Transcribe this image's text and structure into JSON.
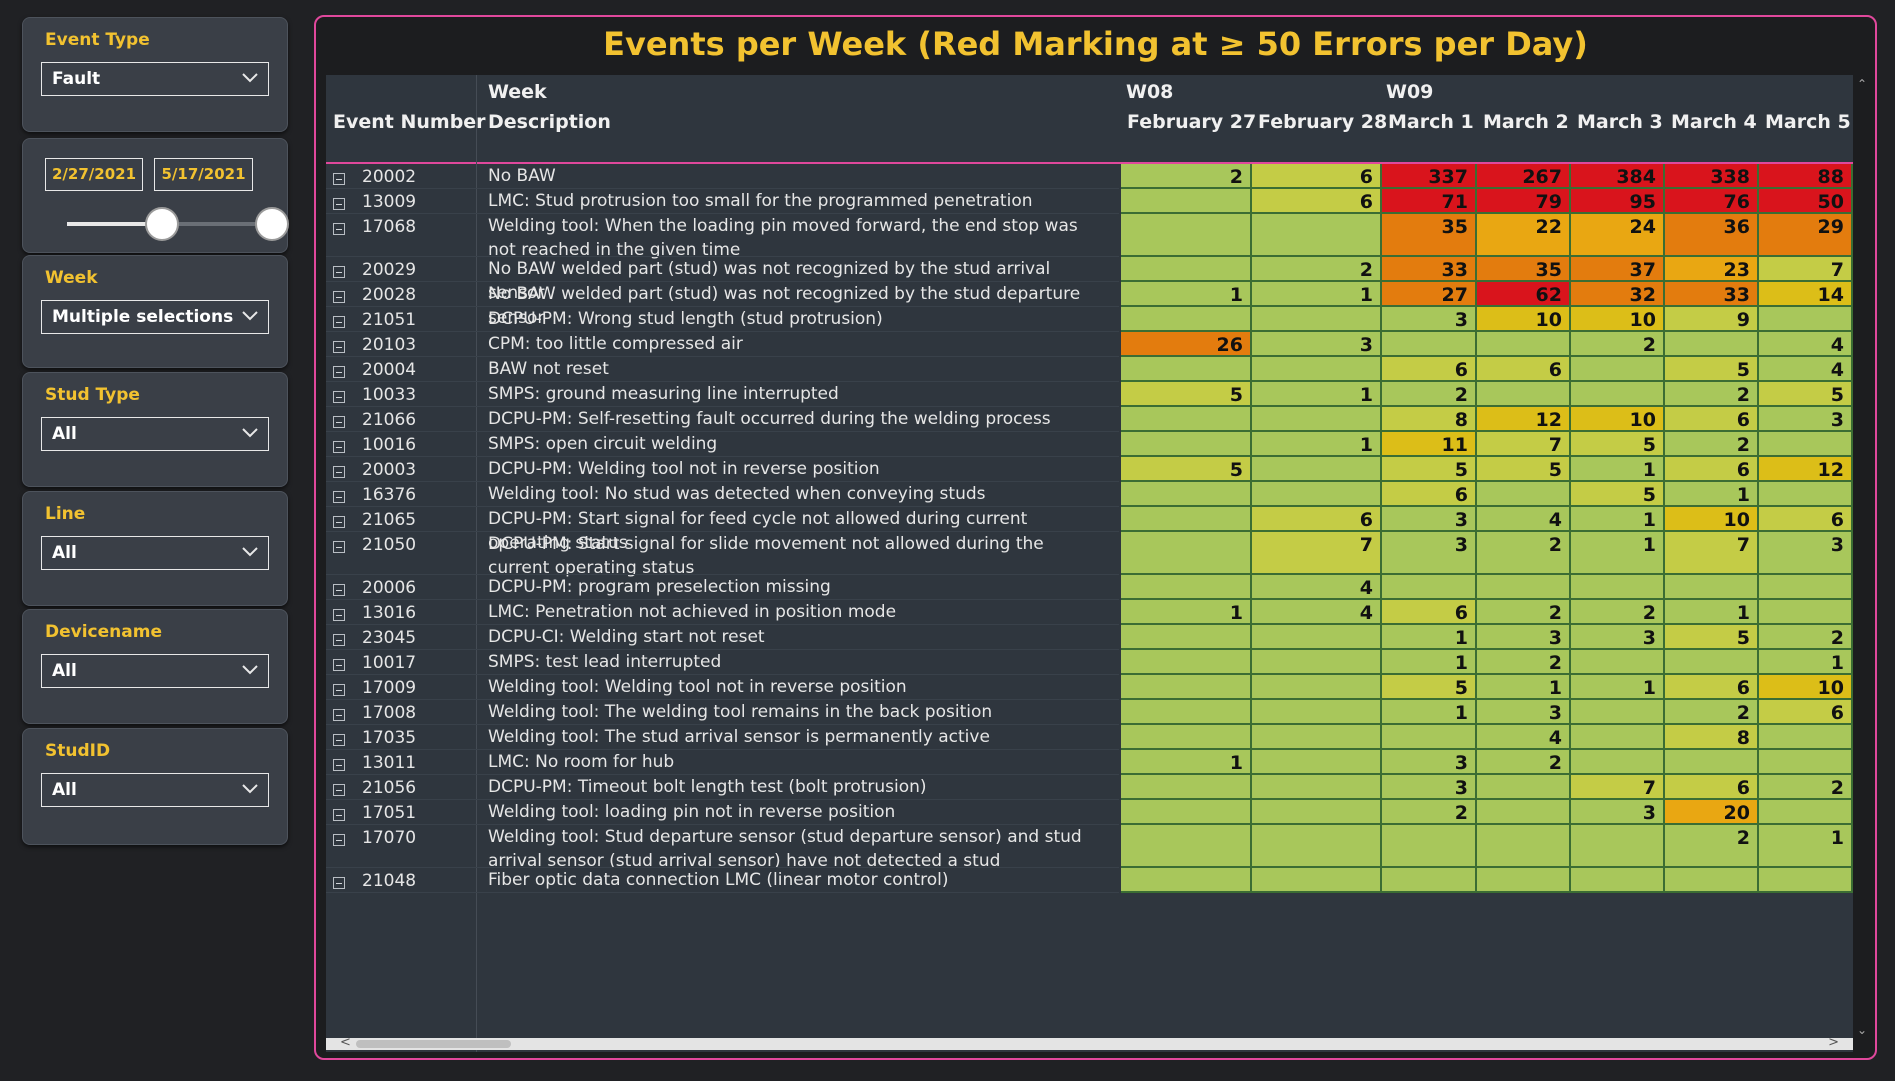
{
  "filters": {
    "event_type": {
      "label": "Event Type",
      "value": "Fault"
    },
    "date_range": {
      "start": "2/27/2021",
      "end": "5/17/2021"
    },
    "week": {
      "label": "Week",
      "value": "Multiple selections"
    },
    "stud_type": {
      "label": "Stud Type",
      "value": "All"
    },
    "line": {
      "label": "Line",
      "value": "All"
    },
    "devicename": {
      "label": "Devicename",
      "value": "All"
    },
    "studid": {
      "label": "StudID",
      "value": "All"
    }
  },
  "visual": {
    "title": "Events per Week (Red Marking at ≥ 50 Errors per Day)",
    "headers": {
      "event_number": "Event Number",
      "week": "Week",
      "description": "Description",
      "weeks": [
        {
          "label": "W08"
        },
        {
          "label": "W09"
        }
      ],
      "days": [
        "February 27",
        "February 28",
        "March 1",
        "March 2",
        "March 3",
        "March 4",
        "March 5"
      ]
    },
    "rows": [
      {
        "event": "20002",
        "desc": "No BAW",
        "values": [
          "2",
          "6",
          "337",
          "267",
          "384",
          "338",
          "88"
        ]
      },
      {
        "event": "13009",
        "desc": "LMC: Stud protrusion too small for the programmed penetration",
        "values": [
          "",
          "6",
          "71",
          "79",
          "95",
          "76",
          "50"
        ]
      },
      {
        "event": "17068",
        "desc": "Welding tool: When the loading pin moved forward, the end stop was not reached in the given time",
        "values": [
          "",
          "",
          "35",
          "22",
          "24",
          "36",
          "29"
        ]
      },
      {
        "event": "20029",
        "desc": "No BAW welded part (stud) was not recognized by the stud arrival sensor",
        "values": [
          "",
          "2",
          "33",
          "35",
          "37",
          "23",
          "7"
        ]
      },
      {
        "event": "20028",
        "desc": "No BAW welded part (stud) was not recognized by the stud departure sensor",
        "values": [
          "1",
          "1",
          "27",
          "62",
          "32",
          "33",
          "14"
        ]
      },
      {
        "event": "21051",
        "desc": "DCPU-PM: Wrong stud length (stud protrusion)",
        "values": [
          "",
          "",
          "3",
          "10",
          "10",
          "9",
          ""
        ]
      },
      {
        "event": "20103",
        "desc": "CPM: too little compressed air",
        "values": [
          "26",
          "3",
          "",
          "",
          "2",
          "",
          "4"
        ]
      },
      {
        "event": "20004",
        "desc": "BAW not reset",
        "values": [
          "",
          "",
          "6",
          "6",
          "",
          "5",
          "4"
        ]
      },
      {
        "event": "10033",
        "desc": "SMPS: ground measuring line interrupted",
        "values": [
          "5",
          "1",
          "2",
          "",
          "",
          "2",
          "5"
        ]
      },
      {
        "event": "21066",
        "desc": "DCPU-PM: Self-resetting fault occurred during the welding process",
        "values": [
          "",
          "",
          "8",
          "12",
          "10",
          "6",
          "3"
        ]
      },
      {
        "event": "10016",
        "desc": "SMPS: open circuit welding",
        "values": [
          "",
          "1",
          "11",
          "7",
          "5",
          "2",
          ""
        ]
      },
      {
        "event": "20003",
        "desc": "DCPU-PM: Welding tool not in reverse position",
        "values": [
          "5",
          "",
          "5",
          "5",
          "1",
          "6",
          "12"
        ]
      },
      {
        "event": "16376",
        "desc": "Welding tool: No stud was detected when conveying studs",
        "values": [
          "",
          "",
          "6",
          "",
          "5",
          "1",
          ""
        ]
      },
      {
        "event": "21065",
        "desc": "DCPU-PM: Start signal for feed cycle not allowed during current operating status",
        "values": [
          "",
          "6",
          "3",
          "4",
          "1",
          "10",
          "6"
        ]
      },
      {
        "event": "21050",
        "desc": "DCPU-PM: Start signal for slide movement not allowed during the current operating status",
        "values": [
          "",
          "7",
          "3",
          "2",
          "1",
          "7",
          "3"
        ]
      },
      {
        "event": "20006",
        "desc": "DCPU-PM: program preselection missing",
        "values": [
          "",
          "4",
          "",
          "",
          "",
          "",
          ""
        ]
      },
      {
        "event": "13016",
        "desc": "LMC: Penetration not achieved in position mode",
        "values": [
          "1",
          "4",
          "6",
          "2",
          "2",
          "1",
          ""
        ]
      },
      {
        "event": "23045",
        "desc": "DCPU-CI: Welding start not reset",
        "values": [
          "",
          "",
          "1",
          "3",
          "3",
          "5",
          "2"
        ]
      },
      {
        "event": "10017",
        "desc": "SMPS: test lead interrupted",
        "values": [
          "",
          "",
          "1",
          "2",
          "",
          "",
          "1"
        ]
      },
      {
        "event": "17009",
        "desc": "Welding tool: Welding tool not in reverse position",
        "values": [
          "",
          "",
          "5",
          "1",
          "1",
          "6",
          "10"
        ]
      },
      {
        "event": "17008",
        "desc": "Welding tool: The welding tool remains in the back position",
        "values": [
          "",
          "",
          "1",
          "3",
          "",
          "2",
          "6"
        ]
      },
      {
        "event": "17035",
        "desc": "Welding tool: The stud arrival sensor is permanently active",
        "values": [
          "",
          "",
          "",
          "4",
          "",
          "8",
          ""
        ]
      },
      {
        "event": "13011",
        "desc": "LMC: No room for hub",
        "values": [
          "1",
          "",
          "3",
          "2",
          "",
          "",
          ""
        ]
      },
      {
        "event": "21056",
        "desc": "DCPU-PM: Timeout bolt length test (bolt protrusion)",
        "values": [
          "",
          "",
          "3",
          "",
          "7",
          "6",
          "2"
        ]
      },
      {
        "event": "17051",
        "desc": "Welding tool: loading pin not in reverse position",
        "values": [
          "",
          "",
          "2",
          "",
          "3",
          "20",
          ""
        ]
      },
      {
        "event": "17070",
        "desc": "Welding tool: Stud departure sensor (stud departure sensor) and stud arrival sensor (stud arrival sensor) have not detected a stud",
        "values": [
          "",
          "",
          "",
          "",
          "",
          "2",
          "1"
        ]
      },
      {
        "event": "21048",
        "desc": "Fiber optic data connection LMC (linear motor control)",
        "values": [
          "",
          "",
          "",
          "",
          "",
          "",
          ""
        ]
      }
    ]
  },
  "colors": {
    "accent": "#f2c230",
    "border": "#e0489c",
    "green": "#a8c75b",
    "yellow_green": "#c4cc46",
    "yellow": "#dcbe18",
    "orange": "#e9a712",
    "dark_orange": "#e37c0e",
    "red": "#d9141c"
  }
}
